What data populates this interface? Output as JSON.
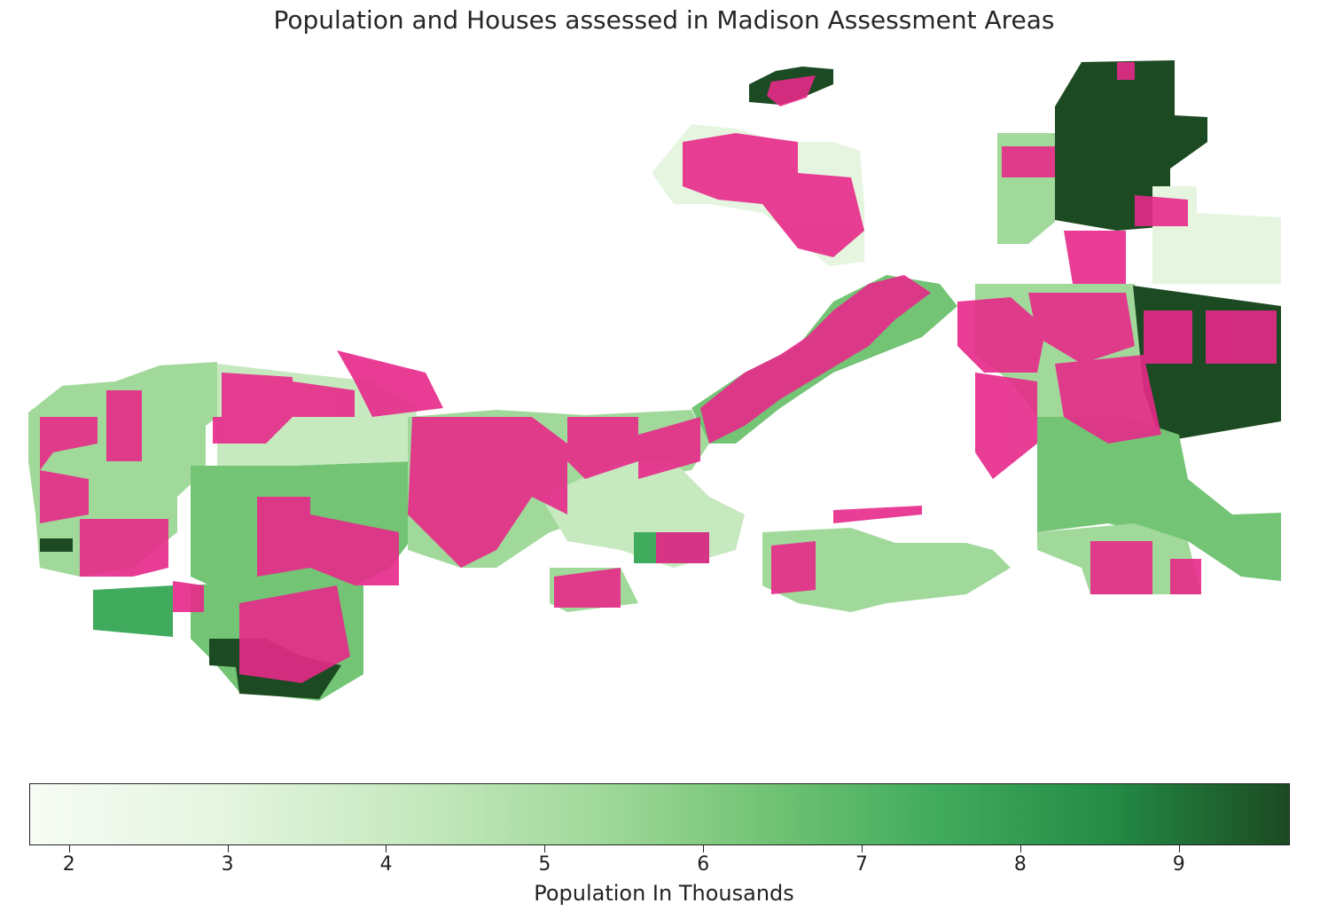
{
  "title": "Population and Houses assessed in Madison Assessment Areas",
  "colorbar": {
    "label": "Population In Thousands",
    "min": 1.75,
    "max": 9.7,
    "ticks": [
      "2",
      "3",
      "4",
      "5",
      "6",
      "7",
      "8",
      "9"
    ],
    "colors": [
      "#f7fcf5",
      "#e5f5e0",
      "#c7e9c0",
      "#a1d99b",
      "#74c476",
      "#41ab5d",
      "#238b45",
      "#1c4a22"
    ]
  },
  "house_marker_color": "#e7298a",
  "map_features": [
    {
      "name": "north-isthmus-tip",
      "value": 9.3
    },
    {
      "name": "northeast-large",
      "value": 9.4
    },
    {
      "name": "east-large",
      "value": 9.2
    },
    {
      "name": "west-far-dark",
      "value": 9.0
    },
    {
      "name": "southwest-dark",
      "value": 8.8
    },
    {
      "name": "southeast-medium",
      "value": 6.2
    },
    {
      "name": "south-center-light",
      "value": 4.6
    },
    {
      "name": "west-medium",
      "value": 5.8
    },
    {
      "name": "northwest-lake-light",
      "value": 3.0
    },
    {
      "name": "isthmus-medium",
      "value": 6.0
    }
  ]
}
